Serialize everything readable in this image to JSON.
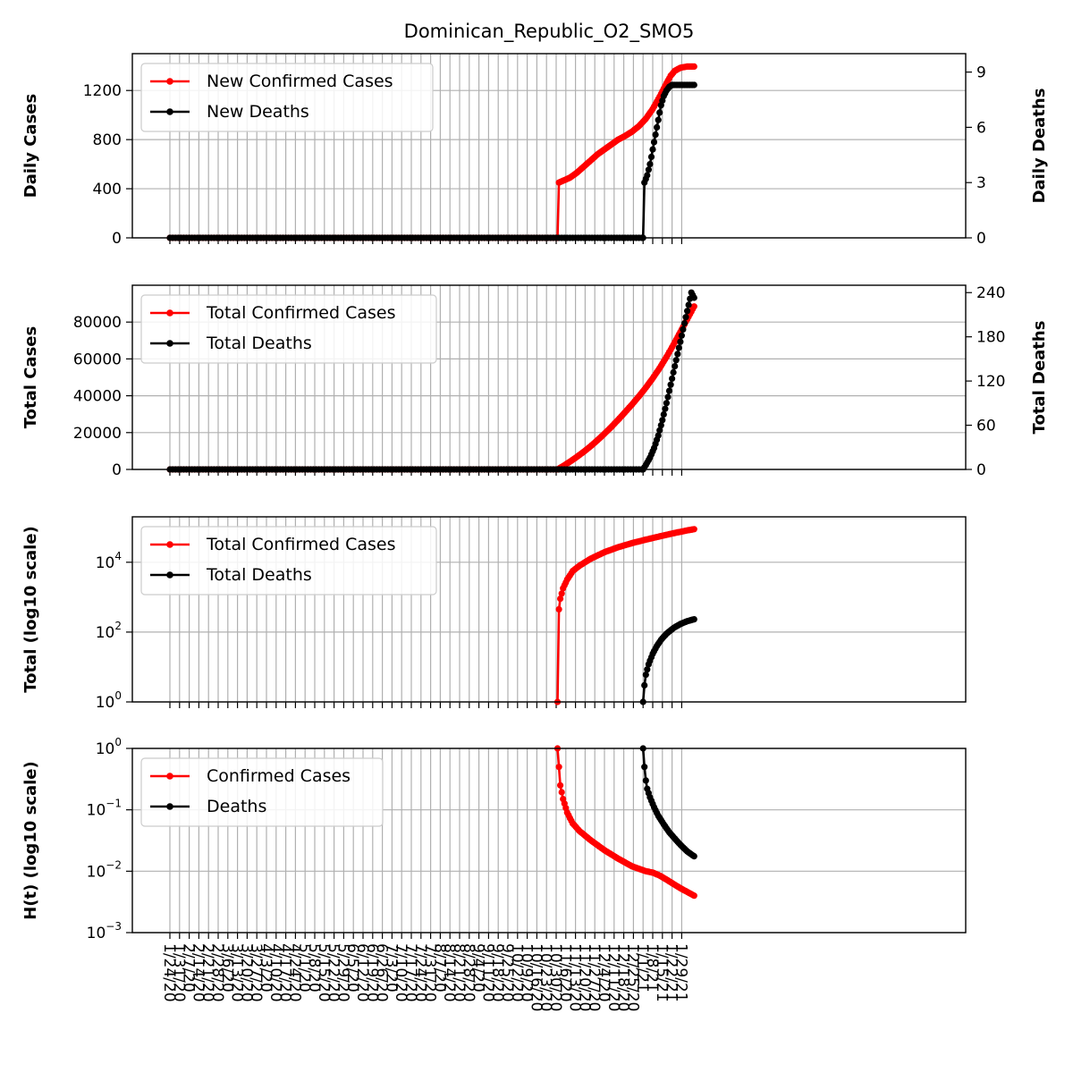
{
  "title": "Dominican_Republic_O2_SMO5",
  "colors": {
    "cases": "#ff0000",
    "deaths": "#000000",
    "grid": "#b0b0b0"
  },
  "x_dates": [
    "1/24/20",
    "1/31/20",
    "2/7/20",
    "2/14/20",
    "2/21/20",
    "2/28/20",
    "3/6/20",
    "3/13/20",
    "3/20/20",
    "3/27/20",
    "4/3/20",
    "4/10/20",
    "4/17/20",
    "4/24/20",
    "5/1/20",
    "5/8/20",
    "5/15/20",
    "5/22/20",
    "5/29/20",
    "6/5/20",
    "6/12/20",
    "6/19/20",
    "6/26/20",
    "7/3/20",
    "7/10/20",
    "7/17/20",
    "7/24/20",
    "7/31/20",
    "8/7/20",
    "8/14/20",
    "8/21/20",
    "8/28/20",
    "9/4/20",
    "9/11/20",
    "9/18/20",
    "9/25/20",
    "10/2/20",
    "10/9/20",
    "10/16/20",
    "10/23/20",
    "10/30/20",
    "11/6/20",
    "11/13/20",
    "11/20/20",
    "11/27/20",
    "12/4/20",
    "12/11/20",
    "12/18/20",
    "12/25/20",
    "1/1/21",
    "1/8/21",
    "1/15/21",
    "1/22/21",
    "1/29/21"
  ],
  "chart_data": [
    {
      "type": "line",
      "panel": "daily",
      "ylabel": "Daily Cases",
      "y2label": "Daily Deaths",
      "ylim": [
        0,
        1500
      ],
      "y2lim": [
        0,
        10
      ],
      "yticks": [
        "0",
        "400",
        "800",
        "1200"
      ],
      "y2ticks": [
        "0",
        "3",
        "6",
        "9"
      ],
      "grid": true,
      "legend_position": "top-left",
      "series": [
        {
          "name": "New Confirmed Cases",
          "axis": "left",
          "color": "#ff0000",
          "start_day": 281,
          "end_day": 380,
          "points": [
            [
              281,
              0
            ],
            [
              282,
              450
            ],
            [
              285,
              465
            ],
            [
              290,
              490
            ],
            [
              295,
              530
            ],
            [
              300,
              580
            ],
            [
              305,
              630
            ],
            [
              310,
              680
            ],
            [
              315,
              720
            ],
            [
              320,
              760
            ],
            [
              325,
              800
            ],
            [
              330,
              830
            ],
            [
              335,
              865
            ],
            [
              340,
              910
            ],
            [
              345,
              970
            ],
            [
              350,
              1050
            ],
            [
              355,
              1150
            ],
            [
              360,
              1260
            ],
            [
              363,
              1320
            ],
            [
              366,
              1360
            ],
            [
              370,
              1385
            ],
            [
              375,
              1395
            ],
            [
              380,
              1395
            ]
          ]
        },
        {
          "name": "New Deaths",
          "axis": "right",
          "color": "#000000",
          "start_day": 343,
          "end_day": 380,
          "points": [
            [
              343,
              0
            ],
            [
              344,
              3.0
            ],
            [
              346,
              3.4
            ],
            [
              348,
              4.0
            ],
            [
              350,
              4.8
            ],
            [
              352,
              5.6
            ],
            [
              354,
              6.4
            ],
            [
              356,
              7.2
            ],
            [
              358,
              7.7
            ],
            [
              360,
              8.0
            ],
            [
              362,
              8.2
            ],
            [
              364,
              8.3
            ],
            [
              366,
              8.3
            ],
            [
              370,
              8.3
            ],
            [
              375,
              8.3
            ],
            [
              380,
              8.3
            ]
          ]
        }
      ]
    },
    {
      "type": "line",
      "panel": "total",
      "ylabel": "Total Cases",
      "y2label": "Total Deaths",
      "ylim": [
        0,
        100000
      ],
      "y2lim": [
        0,
        250
      ],
      "yticks": [
        "0",
        "20000",
        "40000",
        "60000",
        "80000"
      ],
      "y2ticks": [
        "0",
        "60",
        "120",
        "180",
        "240"
      ],
      "grid": true,
      "legend_position": "top-left",
      "series": [
        {
          "name": "Total Confirmed Cases",
          "axis": "left",
          "color": "#ff0000",
          "start_day": 281,
          "end_day": 380,
          "points": [
            [
              281,
              0
            ],
            [
              285,
              1800
            ],
            [
              290,
              4200
            ],
            [
              295,
              6800
            ],
            [
              300,
              9600
            ],
            [
              305,
              12600
            ],
            [
              310,
              15900
            ],
            [
              315,
              19400
            ],
            [
              320,
              23100
            ],
            [
              325,
              27000
            ],
            [
              330,
              31100
            ],
            [
              335,
              35300
            ],
            [
              340,
              39700
            ],
            [
              345,
              44400
            ],
            [
              350,
              49500
            ],
            [
              355,
              55000
            ],
            [
              360,
              61100
            ],
            [
              365,
              67700
            ],
            [
              370,
              74600
            ],
            [
              375,
              81600
            ],
            [
              380,
              88500
            ]
          ]
        },
        {
          "name": "Total Deaths",
          "axis": "right",
          "color": "#000000",
          "start_day": 343,
          "end_day": 380,
          "points": [
            [
              343,
              0
            ],
            [
              345,
              6
            ],
            [
              348,
              16
            ],
            [
              351,
              29
            ],
            [
              354,
              46
            ],
            [
              357,
              67
            ],
            [
              360,
              90
            ],
            [
              363,
              115
            ],
            [
              366,
              140
            ],
            [
              369,
              165
            ],
            [
              372,
              190
            ],
            [
              375,
              215
            ],
            [
              378,
              240
            ],
            [
              380,
              233
            ]
          ]
        }
      ]
    },
    {
      "type": "line",
      "panel": "log_total",
      "ylabel": "Total (log10 scale)",
      "yscale": "log",
      "ylim": [
        1,
        200000
      ],
      "yticks": [
        {
          "base": "10",
          "exp": "0",
          "value": 1
        },
        {
          "base": "10",
          "exp": "2",
          "value": 100
        },
        {
          "base": "10",
          "exp": "4",
          "value": 10000
        }
      ],
      "grid": true,
      "legend_position": "top-left",
      "series": [
        {
          "name": "Total Confirmed Cases",
          "color": "#ff0000",
          "start_day": 281,
          "end_day": 380,
          "points": [
            [
              281,
              1
            ],
            [
              282,
              450
            ],
            [
              283,
              900
            ],
            [
              285,
              1800
            ],
            [
              288,
              3200
            ],
            [
              292,
              5600
            ],
            [
              297,
              8000
            ],
            [
              305,
              12600
            ],
            [
              315,
              19400
            ],
            [
              325,
              27000
            ],
            [
              335,
              35300
            ],
            [
              345,
              44400
            ],
            [
              355,
              55000
            ],
            [
              365,
              67700
            ],
            [
              375,
              81600
            ],
            [
              380,
              88500
            ]
          ]
        },
        {
          "name": "Total Deaths",
          "color": "#000000",
          "start_day": 343,
          "end_day": 380,
          "points": [
            [
              343,
              1
            ],
            [
              344,
              3
            ],
            [
              345,
              6
            ],
            [
              347,
              12
            ],
            [
              350,
              24
            ],
            [
              353,
              40
            ],
            [
              356,
              60
            ],
            [
              360,
              90
            ],
            [
              365,
              130
            ],
            [
              370,
              170
            ],
            [
              375,
              205
            ],
            [
              380,
              233
            ]
          ]
        }
      ]
    },
    {
      "type": "line",
      "panel": "hazard",
      "ylabel": "H(t) (log10 scale)",
      "yscale": "log",
      "ylim": [
        0.001,
        1
      ],
      "yticks": [
        {
          "base": "10",
          "exp": "−3",
          "value": 0.001
        },
        {
          "base": "10",
          "exp": "−2",
          "value": 0.01
        },
        {
          "base": "10",
          "exp": "−1",
          "value": 0.1
        },
        {
          "base": "10",
          "exp": "0",
          "value": 1
        }
      ],
      "grid": true,
      "legend_position": "top-left",
      "series": [
        {
          "name": "Confirmed Cases",
          "color": "#ff0000",
          "start_day": 281,
          "end_day": 380,
          "points": [
            [
              281,
              1
            ],
            [
              282,
              0.5
            ],
            [
              283,
              0.25
            ],
            [
              285,
              0.15
            ],
            [
              288,
              0.09
            ],
            [
              292,
              0.06
            ],
            [
              297,
              0.045
            ],
            [
              305,
              0.032
            ],
            [
              315,
              0.022
            ],
            [
              325,
              0.016
            ],
            [
              335,
              0.012
            ],
            [
              345,
              0.01
            ],
            [
              350,
              0.0095
            ],
            [
              355,
              0.0085
            ],
            [
              360,
              0.0073
            ],
            [
              365,
              0.0062
            ],
            [
              370,
              0.0053
            ],
            [
              375,
              0.0046
            ],
            [
              380,
              0.004
            ]
          ]
        },
        {
          "name": "Deaths",
          "color": "#000000",
          "start_day": 343,
          "end_day": 380,
          "points": [
            [
              343,
              1
            ],
            [
              344,
              0.5
            ],
            [
              345,
              0.3
            ],
            [
              346,
              0.22
            ],
            [
              348,
              0.16
            ],
            [
              351,
              0.11
            ],
            [
              354,
              0.08
            ],
            [
              358,
              0.058
            ],
            [
              362,
              0.043
            ],
            [
              366,
              0.034
            ],
            [
              370,
              0.027
            ],
            [
              375,
              0.021
            ],
            [
              380,
              0.0175
            ]
          ]
        }
      ]
    }
  ]
}
